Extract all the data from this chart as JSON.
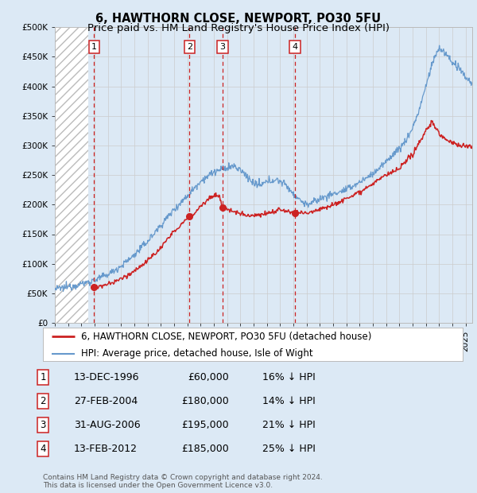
{
  "title": "6, HAWTHORN CLOSE, NEWPORT, PO30 5FU",
  "subtitle": "Price paid vs. HM Land Registry's House Price Index (HPI)",
  "ytick_values": [
    0,
    50000,
    100000,
    150000,
    200000,
    250000,
    300000,
    350000,
    400000,
    450000,
    500000
  ],
  "ylim": [
    0,
    500000
  ],
  "xlim_start": 1994.0,
  "xlim_end": 2025.5,
  "hatch_end": 1996.5,
  "sale_points": [
    {
      "year": 1996.95,
      "price": 60000,
      "label": "1"
    },
    {
      "year": 2004.16,
      "price": 180000,
      "label": "2"
    },
    {
      "year": 2006.66,
      "price": 195000,
      "label": "3"
    },
    {
      "year": 2012.12,
      "price": 185000,
      "label": "4"
    }
  ],
  "vline_years": [
    1996.95,
    2004.16,
    2006.66,
    2012.12
  ],
  "sale_labels_info": [
    {
      "num": "1",
      "date": "13-DEC-1996",
      "price": "£60,000",
      "hpi": "16% ↓ HPI"
    },
    {
      "num": "2",
      "date": "27-FEB-2004",
      "price": "£180,000",
      "hpi": "14% ↓ HPI"
    },
    {
      "num": "3",
      "date": "31-AUG-2006",
      "price": "£195,000",
      "hpi": "21% ↓ HPI"
    },
    {
      "num": "4",
      "date": "13-FEB-2012",
      "price": "£185,000",
      "hpi": "25% ↓ HPI"
    }
  ],
  "red_line_color": "#cc2222",
  "blue_line_color": "#6699cc",
  "hatch_color": "#bbbbbb",
  "grid_color": "#cccccc",
  "background_color": "#dce9f5",
  "vline_color": "#cc2222",
  "legend_label_red": "6, HAWTHORN CLOSE, NEWPORT, PO30 5FU (detached house)",
  "legend_label_blue": "HPI: Average price, detached house, Isle of Wight",
  "footnote": "Contains HM Land Registry data © Crown copyright and database right 2024.\nThis data is licensed under the Open Government Licence v3.0.",
  "title_fontsize": 10.5,
  "subtitle_fontsize": 9.5,
  "tick_fontsize": 7.5,
  "legend_fontsize": 8.5,
  "table_fontsize": 9
}
